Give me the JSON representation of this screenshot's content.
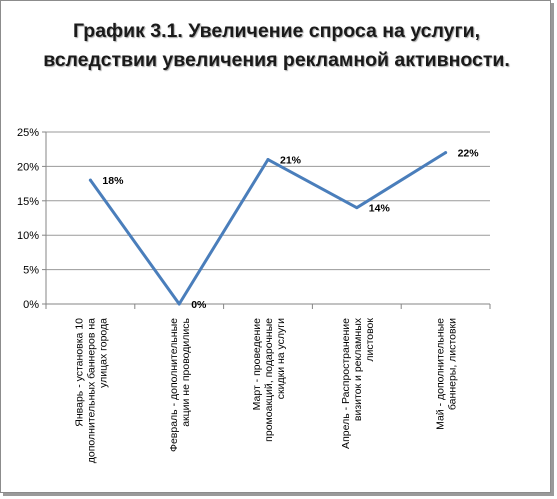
{
  "chart_data": {
    "type": "line",
    "title": "График 3.1. Увеличение спроса на услуги, вследствии увеличения рекламной активности.",
    "categories": [
      [
        "Январь - установка 10",
        "дополнительных баннеров на",
        "улицах города"
      ],
      [
        "Февраль - дополнительные",
        "акции не проводились"
      ],
      [
        "Март - проведение",
        "промоакций, подарочные",
        "скидки на услуги"
      ],
      [
        "Апрель - Распространение",
        "визиток и рекламных",
        "листовок"
      ],
      [
        "Май - дополнительные",
        "баннеры, листовки"
      ]
    ],
    "values": [
      18,
      0,
      21,
      14,
      22
    ],
    "data_labels": [
      "18%",
      "0%",
      "21%",
      "14%",
      "22%"
    ],
    "ylim": [
      0,
      25
    ],
    "y_ticks": [
      "0%",
      "5%",
      "10%",
      "15%",
      "20%",
      "25%"
    ],
    "y_tick_values": [
      0,
      5,
      10,
      15,
      20,
      25
    ],
    "grid": true,
    "legend": "none",
    "line_color": "#4a7ebb",
    "grid_color": "#9a9a9a",
    "axis_color": "#868686"
  }
}
